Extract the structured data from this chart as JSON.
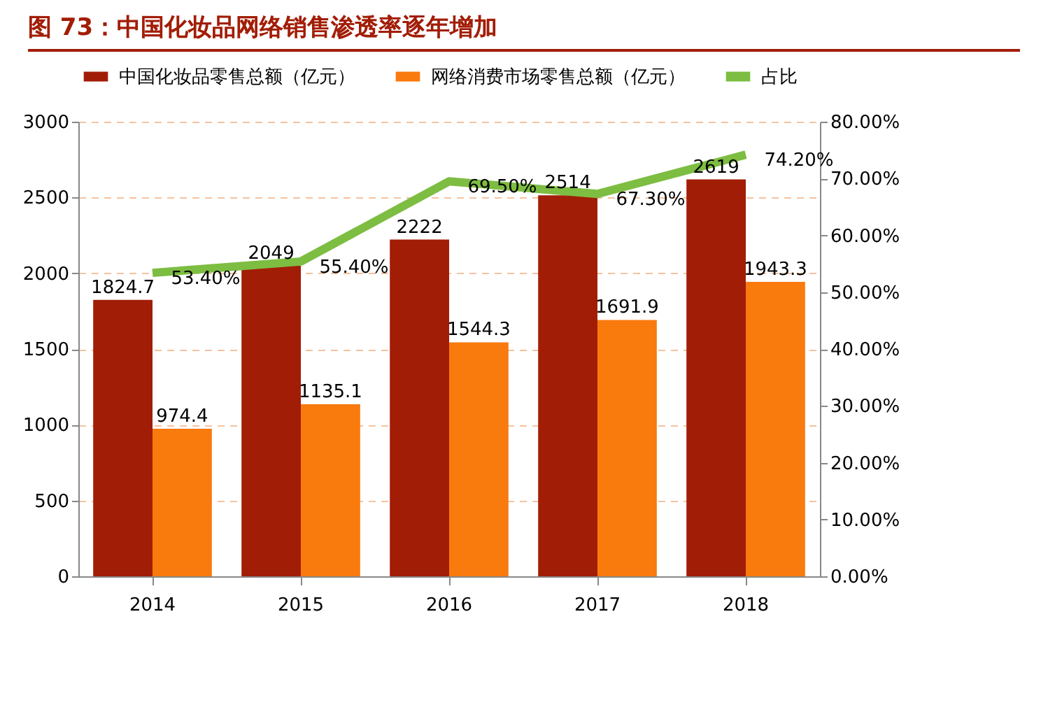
{
  "chart_data": {
    "type": "bar",
    "title": "图 73：中国化妆品网络销售渗透率逐年增加",
    "categories": [
      "2014",
      "2015",
      "2016",
      "2017",
      "2018"
    ],
    "series": [
      {
        "name": "中国化妆品零售总额（亿元）",
        "color": "#a21d06",
        "values": [
          1824.7,
          2049,
          2222,
          2514,
          2619
        ],
        "value_labels": [
          "1824.7",
          "2049",
          "2222",
          "2514",
          "2619"
        ]
      },
      {
        "name": "网络消费市场零售总额（亿元）",
        "color": "#f97a0d",
        "values": [
          974.4,
          1135.1,
          1544.3,
          1691.9,
          1943.3
        ],
        "value_labels": [
          "974.4",
          "1135.1",
          "1544.3",
          "1691.9",
          "1943.3"
        ]
      },
      {
        "name": "占比",
        "type": "line",
        "axis": "y2",
        "color": "#7dbd42",
        "values": [
          53.4,
          55.4,
          69.5,
          67.3,
          74.2
        ],
        "value_labels": [
          "53.40%",
          "55.40%",
          "69.50%",
          "67.30%",
          "74.20%"
        ]
      }
    ],
    "ylim": [
      0,
      3000
    ],
    "yticks": [
      0,
      500,
      1000,
      1500,
      2000,
      2500,
      3000
    ],
    "y2lim": [
      0,
      80
    ],
    "y2ticks": [
      {
        "value": 0,
        "label": "0.00%"
      },
      {
        "value": 10,
        "label": "10.00%"
      },
      {
        "value": 20,
        "label": "20.00%"
      },
      {
        "value": 30,
        "label": "30.00%"
      },
      {
        "value": 40,
        "label": "40.00%"
      },
      {
        "value": 50,
        "label": "50.00%"
      },
      {
        "value": 60,
        "label": "60.00%"
      },
      {
        "value": 70,
        "label": "70.00%"
      },
      {
        "value": 80,
        "label": "80.00%"
      }
    ],
    "grid": "y",
    "legend": "top"
  }
}
